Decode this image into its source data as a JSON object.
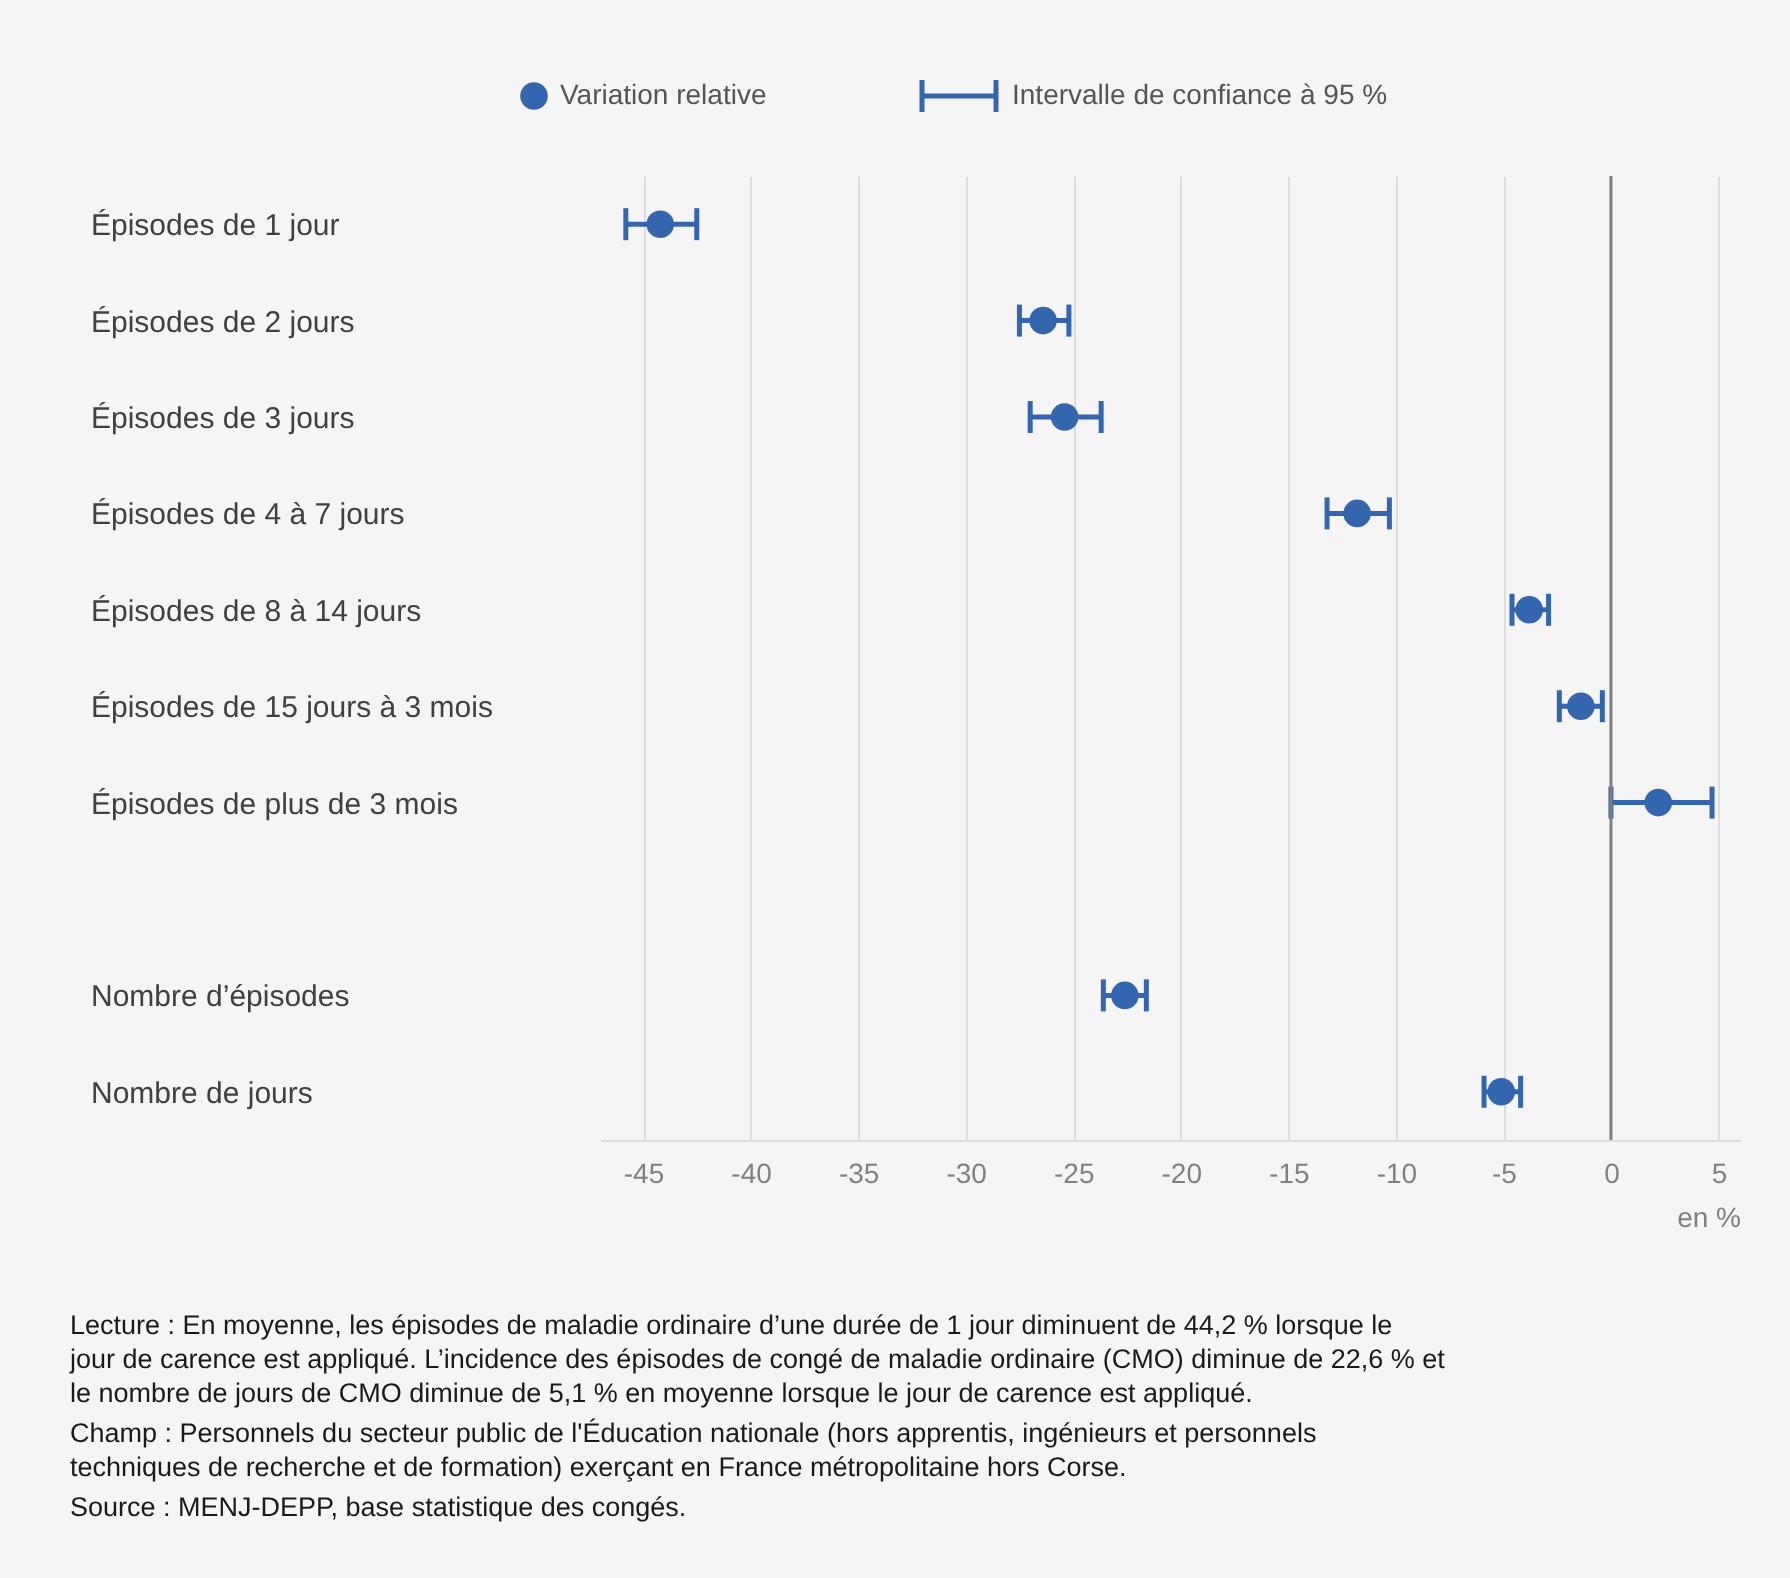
{
  "chart_data": {
    "type": "scatter",
    "orientation": "horizontal",
    "categories": [
      "Épisodes de 1 jour",
      "Épisodes de 2 jours",
      "Épisodes de 3 jours",
      "Épisodes de 4 à 7 jours",
      "Épisodes de 8 à 14 jours",
      "Épisodes de 15 jours à 3 mois",
      "Épisodes de plus de 3 mois",
      null,
      "Nombre d’épisodes",
      "Nombre de jours"
    ],
    "series": [
      {
        "name": "Variation relative",
        "color": "#3466b0",
        "values": [
          -44.2,
          -26.4,
          -25.4,
          -11.8,
          -3.8,
          -1.4,
          2.2,
          null,
          -22.6,
          -5.1
        ],
        "errors": [
          [
            -45.8,
            -42.5
          ],
          [
            -27.5,
            -25.2
          ],
          [
            -27.0,
            -23.7
          ],
          [
            -13.2,
            -10.3
          ],
          [
            -4.6,
            -2.9
          ],
          [
            -2.4,
            -0.4
          ],
          [
            0.0,
            4.7
          ],
          null,
          [
            -23.6,
            -21.6
          ],
          [
            -5.9,
            -4.2
          ]
        ]
      }
    ],
    "xlim": [
      -47,
      6
    ],
    "xticks": [
      -45,
      -40,
      -35,
      -30,
      -25,
      -20,
      -15,
      -10,
      -5,
      0,
      5
    ],
    "xlabel": "en %",
    "grid": "x",
    "legend": "top",
    "marker": "circle",
    "ref_lines": [
      {
        "axis": "x",
        "value": 0,
        "color": "#7f7f7f"
      }
    ],
    "annotations": [
      "Intervalle de confiance à 95 %",
      "Lecture : En moyenne, les épisodes de maladie ordinaire d’une durée de 1 jour diminuent de 44,2 % lorsque le jour de carence est appliqué. L’incidence des épisodes de congé de maladie ordinaire (CMO) diminue de 22,6 % et le nombre de jours de CMO diminue de 5,1 % en moyenne lorsque le jour de carence est appliqué.",
      "Champ : Personnels du secteur public de l'Éducation nationale (hors apprentis, ingénieurs et personnels techniques de recherche et de formation) exerçant en France métropolitaine hors Corse.",
      "Source : MENJ-DEPP, base statistique des congés."
    ]
  }
}
